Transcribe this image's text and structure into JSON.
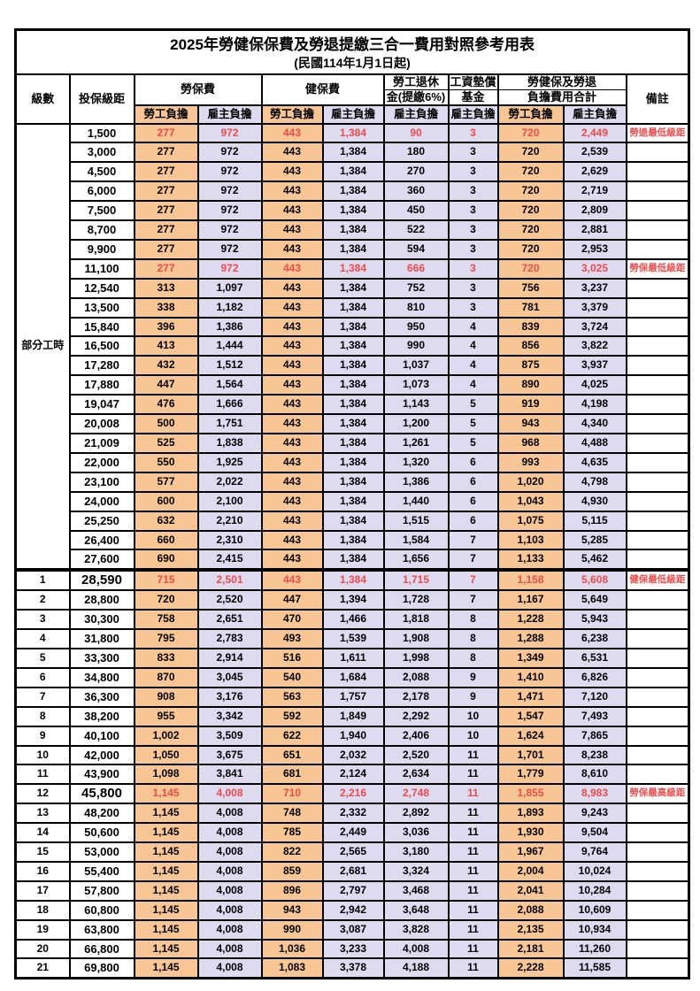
{
  "title": "2025年勞健保保費及勞退提繳三合一費用對照參考用表",
  "subtitle": "(民國114年1月1日起)",
  "colors": {
    "orange_employee_fill": "#F8C695",
    "lavender_employer_fill": "#DEDBF0",
    "highlight_red_text": "#EE4A4A",
    "border_black": "#000000"
  },
  "header": {
    "grade": "級數",
    "bracket": "投保級距",
    "labor_insurance": "勞保費",
    "health_insurance": "健保費",
    "pension_line1": "勞工退休",
    "pension_line2": "金(提繳6%)",
    "wage_fund_line1": "工資墊償",
    "wage_fund_line2": "基金",
    "total_line1": "勞健保及勞退",
    "total_line2": "負擔費用合計",
    "note": "備註",
    "employee_share": "勞工負擔",
    "employer_share": "雇主負擔"
  },
  "table": {
    "partial_time_label": "部分工時",
    "partial_time_rowspan": 23,
    "columns": [
      "grade",
      "bracket",
      "labor_employee",
      "labor_employer",
      "health_employee",
      "health_employer",
      "pension_employer",
      "wage_fund_employer",
      "total_employee",
      "total_employer",
      "note",
      "red_highlight",
      "big_bracket",
      "thick_top_border"
    ],
    "rows": [
      [
        "",
        "1,500",
        "277",
        "972",
        "443",
        "1,384",
        "90",
        "3",
        "720",
        "2,449",
        "勞退最低級距",
        1,
        0,
        0
      ],
      [
        "",
        "3,000",
        "277",
        "972",
        "443",
        "1,384",
        "180",
        "3",
        "720",
        "2,539",
        "",
        0,
        0,
        0
      ],
      [
        "",
        "4,500",
        "277",
        "972",
        "443",
        "1,384",
        "270",
        "3",
        "720",
        "2,629",
        "",
        0,
        0,
        0
      ],
      [
        "",
        "6,000",
        "277",
        "972",
        "443",
        "1,384",
        "360",
        "3",
        "720",
        "2,719",
        "",
        0,
        0,
        0
      ],
      [
        "",
        "7,500",
        "277",
        "972",
        "443",
        "1,384",
        "450",
        "3",
        "720",
        "2,809",
        "",
        0,
        0,
        0
      ],
      [
        "",
        "8,700",
        "277",
        "972",
        "443",
        "1,384",
        "522",
        "3",
        "720",
        "2,881",
        "",
        0,
        0,
        0
      ],
      [
        "",
        "9,900",
        "277",
        "972",
        "443",
        "1,384",
        "594",
        "3",
        "720",
        "2,953",
        "",
        0,
        0,
        0
      ],
      [
        "",
        "11,100",
        "277",
        "972",
        "443",
        "1,384",
        "666",
        "3",
        "720",
        "3,025",
        "勞保最低級距",
        1,
        0,
        0
      ],
      [
        "",
        "12,540",
        "313",
        "1,097",
        "443",
        "1,384",
        "752",
        "3",
        "756",
        "3,237",
        "",
        0,
        0,
        0
      ],
      [
        "",
        "13,500",
        "338",
        "1,182",
        "443",
        "1,384",
        "810",
        "3",
        "781",
        "3,379",
        "",
        0,
        0,
        0
      ],
      [
        "",
        "15,840",
        "396",
        "1,386",
        "443",
        "1,384",
        "950",
        "4",
        "839",
        "3,724",
        "",
        0,
        0,
        0
      ],
      [
        "",
        "16,500",
        "413",
        "1,444",
        "443",
        "1,384",
        "990",
        "4",
        "856",
        "3,822",
        "",
        0,
        0,
        0
      ],
      [
        "",
        "17,280",
        "432",
        "1,512",
        "443",
        "1,384",
        "1,037",
        "4",
        "875",
        "3,937",
        "",
        0,
        0,
        0
      ],
      [
        "",
        "17,880",
        "447",
        "1,564",
        "443",
        "1,384",
        "1,073",
        "4",
        "890",
        "4,025",
        "",
        0,
        0,
        0
      ],
      [
        "",
        "19,047",
        "476",
        "1,666",
        "443",
        "1,384",
        "1,143",
        "5",
        "919",
        "4,198",
        "",
        0,
        0,
        0
      ],
      [
        "",
        "20,008",
        "500",
        "1,751",
        "443",
        "1,384",
        "1,200",
        "5",
        "943",
        "4,340",
        "",
        0,
        0,
        0
      ],
      [
        "",
        "21,009",
        "525",
        "1,838",
        "443",
        "1,384",
        "1,261",
        "5",
        "968",
        "4,488",
        "",
        0,
        0,
        0
      ],
      [
        "",
        "22,000",
        "550",
        "1,925",
        "443",
        "1,384",
        "1,320",
        "6",
        "993",
        "4,635",
        "",
        0,
        0,
        0
      ],
      [
        "",
        "23,100",
        "577",
        "2,022",
        "443",
        "1,384",
        "1,386",
        "6",
        "1,020",
        "4,798",
        "",
        0,
        0,
        0
      ],
      [
        "",
        "24,000",
        "600",
        "2,100",
        "443",
        "1,384",
        "1,440",
        "6",
        "1,043",
        "4,930",
        "",
        0,
        0,
        0
      ],
      [
        "",
        "25,250",
        "632",
        "2,210",
        "443",
        "1,384",
        "1,515",
        "6",
        "1,075",
        "5,115",
        "",
        0,
        0,
        0
      ],
      [
        "",
        "26,400",
        "660",
        "2,310",
        "443",
        "1,384",
        "1,584",
        "7",
        "1,103",
        "5,285",
        "",
        0,
        0,
        0
      ],
      [
        "",
        "27,600",
        "690",
        "2,415",
        "443",
        "1,384",
        "1,656",
        "7",
        "1,133",
        "5,462",
        "",
        0,
        0,
        0
      ],
      [
        "1",
        "28,590",
        "715",
        "2,501",
        "443",
        "1,384",
        "1,715",
        "7",
        "1,158",
        "5,608",
        "健保最低級距",
        1,
        1,
        1
      ],
      [
        "2",
        "28,800",
        "720",
        "2,520",
        "447",
        "1,394",
        "1,728",
        "7",
        "1,167",
        "5,649",
        "",
        0,
        0,
        0
      ],
      [
        "3",
        "30,300",
        "758",
        "2,651",
        "470",
        "1,466",
        "1,818",
        "8",
        "1,228",
        "5,943",
        "",
        0,
        0,
        0
      ],
      [
        "4",
        "31,800",
        "795",
        "2,783",
        "493",
        "1,539",
        "1,908",
        "8",
        "1,288",
        "6,238",
        "",
        0,
        0,
        0
      ],
      [
        "5",
        "33,300",
        "833",
        "2,914",
        "516",
        "1,611",
        "1,998",
        "8",
        "1,349",
        "6,531",
        "",
        0,
        0,
        0
      ],
      [
        "6",
        "34,800",
        "870",
        "3,045",
        "540",
        "1,684",
        "2,088",
        "9",
        "1,410",
        "6,826",
        "",
        0,
        0,
        0
      ],
      [
        "7",
        "36,300",
        "908",
        "3,176",
        "563",
        "1,757",
        "2,178",
        "9",
        "1,471",
        "7,120",
        "",
        0,
        0,
        0
      ],
      [
        "8",
        "38,200",
        "955",
        "3,342",
        "592",
        "1,849",
        "2,292",
        "10",
        "1,547",
        "7,493",
        "",
        0,
        0,
        0
      ],
      [
        "9",
        "40,100",
        "1,002",
        "3,509",
        "622",
        "1,940",
        "2,406",
        "10",
        "1,624",
        "7,865",
        "",
        0,
        0,
        0
      ],
      [
        "10",
        "42,000",
        "1,050",
        "3,675",
        "651",
        "2,032",
        "2,520",
        "11",
        "1,701",
        "8,238",
        "",
        0,
        0,
        0
      ],
      [
        "11",
        "43,900",
        "1,098",
        "3,841",
        "681",
        "2,124",
        "2,634",
        "11",
        "1,779",
        "8,610",
        "",
        0,
        0,
        0
      ],
      [
        "12",
        "45,800",
        "1,145",
        "4,008",
        "710",
        "2,216",
        "2,748",
        "11",
        "1,855",
        "8,983",
        "勞保最高級距",
        1,
        1,
        0
      ],
      [
        "13",
        "48,200",
        "1,145",
        "4,008",
        "748",
        "2,332",
        "2,892",
        "11",
        "1,893",
        "9,243",
        "",
        0,
        0,
        0
      ],
      [
        "14",
        "50,600",
        "1,145",
        "4,008",
        "785",
        "2,449",
        "3,036",
        "11",
        "1,930",
        "9,504",
        "",
        0,
        0,
        0
      ],
      [
        "15",
        "53,000",
        "1,145",
        "4,008",
        "822",
        "2,565",
        "3,180",
        "11",
        "1,967",
        "9,764",
        "",
        0,
        0,
        0
      ],
      [
        "16",
        "55,400",
        "1,145",
        "4,008",
        "859",
        "2,681",
        "3,324",
        "11",
        "2,004",
        "10,024",
        "",
        0,
        0,
        0
      ],
      [
        "17",
        "57,800",
        "1,145",
        "4,008",
        "896",
        "2,797",
        "3,468",
        "11",
        "2,041",
        "10,284",
        "",
        0,
        0,
        0
      ],
      [
        "18",
        "60,800",
        "1,145",
        "4,008",
        "943",
        "2,942",
        "3,648",
        "11",
        "2,088",
        "10,609",
        "",
        0,
        0,
        0
      ],
      [
        "19",
        "63,800",
        "1,145",
        "4,008",
        "990",
        "3,087",
        "3,828",
        "11",
        "2,135",
        "10,934",
        "",
        0,
        0,
        0
      ],
      [
        "20",
        "66,800",
        "1,145",
        "4,008",
        "1,036",
        "3,233",
        "4,008",
        "11",
        "2,181",
        "11,260",
        "",
        0,
        0,
        0
      ],
      [
        "21",
        "69,800",
        "1,145",
        "4,008",
        "1,083",
        "3,378",
        "4,188",
        "11",
        "2,228",
        "11,585",
        "",
        0,
        0,
        0
      ]
    ]
  }
}
